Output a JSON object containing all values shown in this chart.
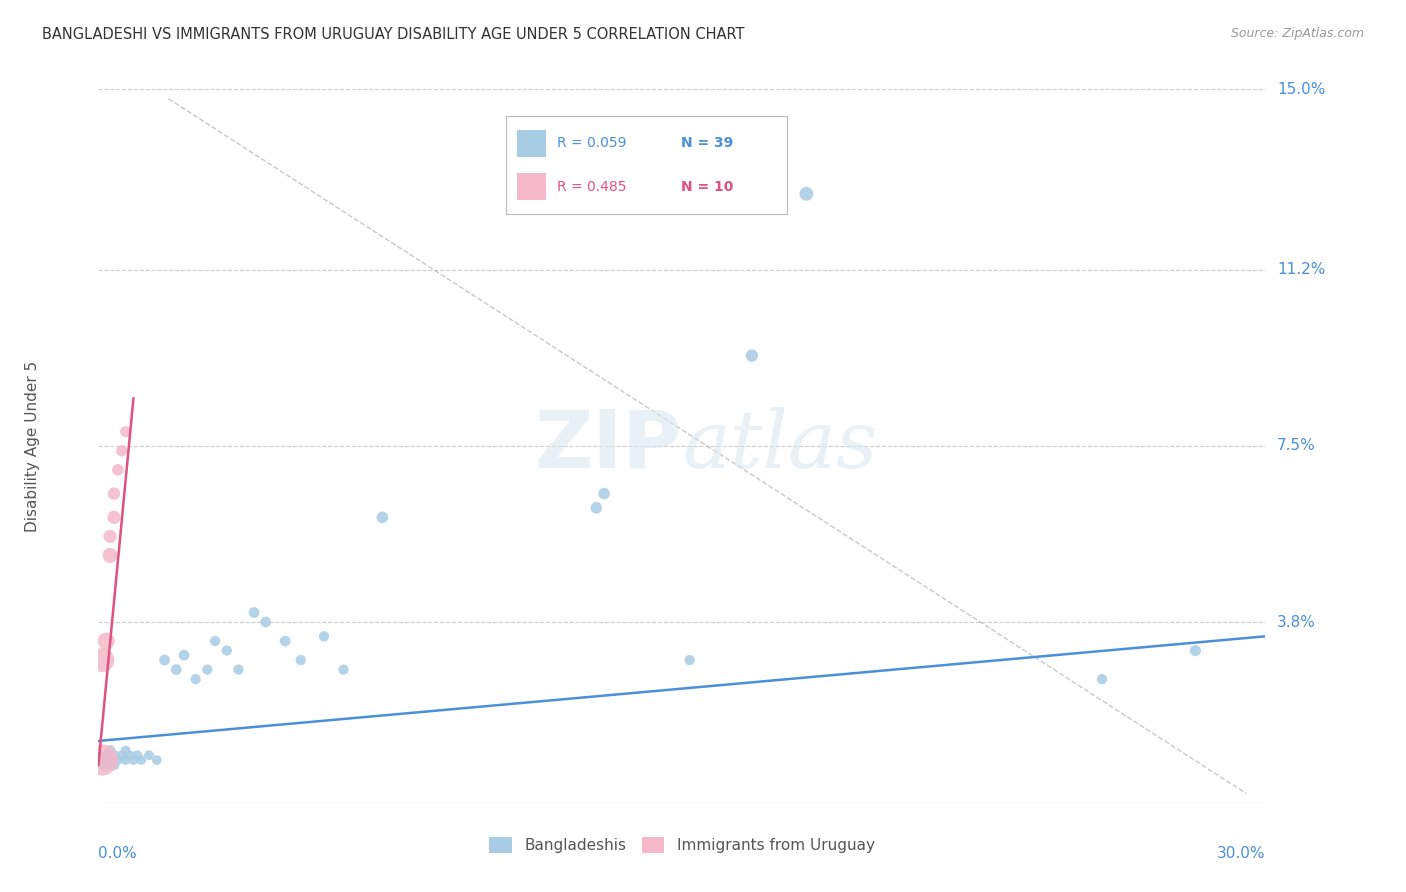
{
  "title": "BANGLADESHI VS IMMIGRANTS FROM URUGUAY DISABILITY AGE UNDER 5 CORRELATION CHART",
  "source": "Source: ZipAtlas.com",
  "ylabel": "Disability Age Under 5",
  "watermark_zip": "ZIP",
  "watermark_atlas": "atlas",
  "xlim": [
    0.0,
    0.3
  ],
  "ylim": [
    0.0,
    0.15
  ],
  "ytick_vals": [
    0.0,
    0.038,
    0.075,
    0.112,
    0.15
  ],
  "ytick_labels": [
    "",
    "3.8%",
    "7.5%",
    "11.2%",
    "15.0%"
  ],
  "color_blue": "#a8cce4",
  "color_pink": "#f4b8c8",
  "color_trend_blue": "#4a90d9",
  "color_trend_pink": "#e05080",
  "color_axis_label": "#4a90d9",
  "color_title": "#333333",
  "color_grid": "#cccccc",
  "color_source": "#999999",
  "bangladeshi_x": [
    0.001,
    0.002,
    0.002,
    0.003,
    0.003,
    0.004,
    0.004,
    0.005,
    0.006,
    0.007,
    0.007,
    0.008,
    0.009,
    0.01,
    0.011,
    0.013,
    0.015,
    0.017,
    0.02,
    0.022,
    0.025,
    0.028,
    0.03,
    0.033,
    0.036,
    0.04,
    0.043,
    0.048,
    0.052,
    0.058,
    0.063,
    0.073,
    0.128,
    0.152,
    0.168,
    0.182,
    0.258,
    0.282,
    0.13
  ],
  "bangladeshi_y": [
    0.009,
    0.008,
    0.01,
    0.009,
    0.011,
    0.008,
    0.01,
    0.009,
    0.01,
    0.009,
    0.011,
    0.01,
    0.009,
    0.01,
    0.009,
    0.01,
    0.009,
    0.03,
    0.028,
    0.031,
    0.026,
    0.028,
    0.034,
    0.032,
    0.028,
    0.04,
    0.038,
    0.034,
    0.03,
    0.035,
    0.028,
    0.06,
    0.062,
    0.03,
    0.094,
    0.128,
    0.026,
    0.032,
    0.065
  ],
  "bangladeshi_sizes": [
    150,
    100,
    80,
    70,
    60,
    60,
    55,
    50,
    50,
    50,
    50,
    50,
    50,
    50,
    50,
    50,
    50,
    60,
    60,
    60,
    55,
    55,
    55,
    55,
    55,
    60,
    60,
    60,
    55,
    55,
    55,
    70,
    70,
    55,
    80,
    100,
    55,
    65,
    70
  ],
  "uruguay_x": [
    0.001,
    0.001,
    0.002,
    0.003,
    0.003,
    0.004,
    0.004,
    0.005,
    0.006,
    0.007
  ],
  "uruguay_y": [
    0.009,
    0.03,
    0.034,
    0.052,
    0.056,
    0.06,
    0.065,
    0.07,
    0.074,
    0.078
  ],
  "uruguay_sizes": [
    500,
    300,
    150,
    120,
    90,
    90,
    80,
    70,
    65,
    65
  ],
  "blue_trend_x": [
    0.0,
    0.3
  ],
  "blue_trend_y": [
    0.013,
    0.035
  ],
  "pink_trend_x": [
    0.0,
    0.009
  ],
  "pink_trend_y": [
    0.008,
    0.085
  ],
  "ref_line_x": [
    0.018,
    0.295
  ],
  "ref_line_y": [
    0.148,
    0.002
  ]
}
